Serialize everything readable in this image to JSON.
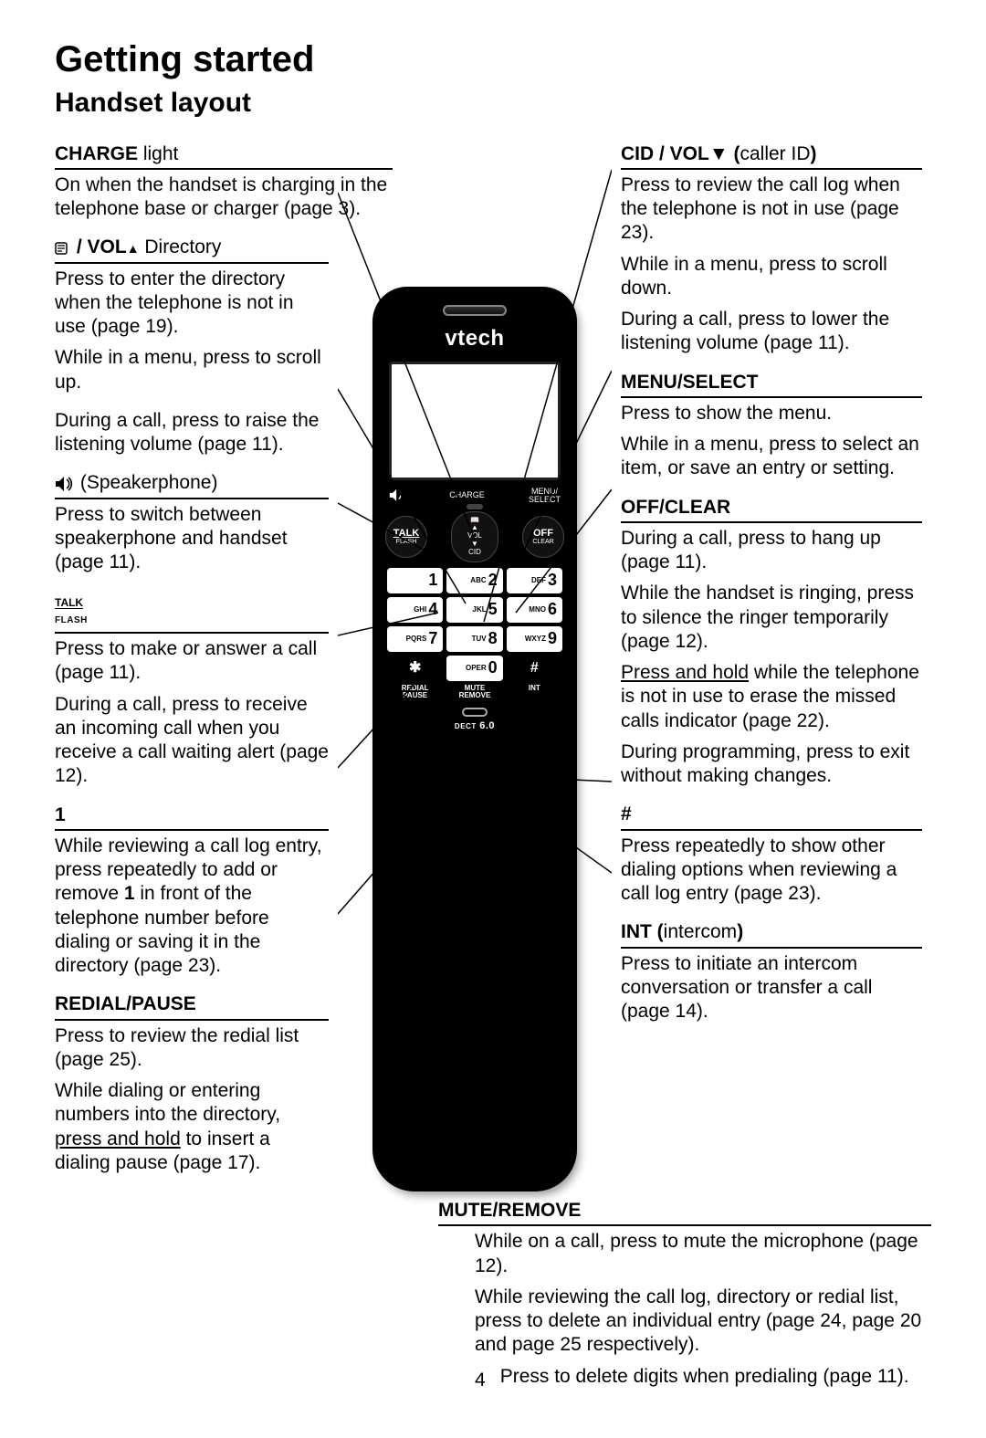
{
  "title": "Getting started",
  "subtitle": "Handset layout",
  "pageNumber": "4",
  "phone": {
    "brand": "vtech",
    "chargeLabel": "CHARGE",
    "menuSelectLabel": "MENU/\nSELECT",
    "talk": "TALK",
    "flash": "FLASH",
    "off": "OFF",
    "clear": "CLEAR",
    "navTop": "VOL",
    "navBottom": "CID",
    "keypad": [
      {
        "num": "1",
        "ltr": ""
      },
      {
        "num": "2",
        "ltr": "ABC"
      },
      {
        "num": "3",
        "ltr": "DEF"
      },
      {
        "num": "4",
        "ltr": "GHI"
      },
      {
        "num": "5",
        "ltr": "JKL"
      },
      {
        "num": "6",
        "ltr": "MNO"
      },
      {
        "num": "7",
        "ltr": "PQRS"
      },
      {
        "num": "8",
        "ltr": "TUV"
      },
      {
        "num": "9",
        "ltr": "WXYZ"
      },
      {
        "num": "✱",
        "ltr": ""
      },
      {
        "num": "0",
        "ltr": "OPER"
      },
      {
        "num": "#",
        "ltr": ""
      }
    ],
    "fnRow": [
      "REDIAL\nPAUSE",
      "MUTE\nREMOVE",
      "INT"
    ],
    "dect": "DECT 6.0"
  },
  "left": {
    "charge": {
      "hd_b": "CHARGE",
      "hd_r": " light",
      "p1": "On when the handset is charging in the telephone base or charger (page 3)."
    },
    "dir": {
      "hd_b": "/ VOL",
      "hd_r": "   Directory",
      "p1": "Press to enter the directory when the telephone is not in use (page 19).",
      "p2": "While in a menu, press to scroll up.",
      "p3": "During a call, press to raise the listening volume (page 11)."
    },
    "spk": {
      "hd_r": " (Speakerphone)",
      "p1": "Press to switch between speakerphone and handset (page 11)."
    },
    "talk": {
      "p1": "Press to make or answer a call (page 11).",
      "p2": "During a call, press to receive an incoming call when you receive a call waiting alert (page 12)."
    },
    "one": {
      "hd_b": "1",
      "p1_a": "While reviewing a call log entry, press repeatedly to add or remove ",
      "p1_b": "1",
      "p1_c": " in front of the telephone number before dialing or saving it in the directory (page 23)."
    },
    "redial": {
      "hd_b": "REDIAL/PAUSE",
      "p1": "Press to review the redial list (page 25).",
      "p2_a": "While dialing or entering numbers into the directory, ",
      "p2_b": "press and hold",
      "p2_c": " to insert a dialing pause (page 17)."
    }
  },
  "right": {
    "cid": {
      "hd_b": "CID / VOL",
      "hd_r": "caller ID",
      "p1": "Press to review the call log when the telephone is not in use (page 23).",
      "p2": "While in a menu, press to scroll down.",
      "p3": "During a call, press to lower the listening volume (page 11)."
    },
    "menu": {
      "hd_b": "MENU/SELECT",
      "p1": "Press to show the menu.",
      "p2": "While in a menu, press to select an item, or save an entry or setting."
    },
    "off": {
      "hd_b": "OFF/CLEAR",
      "p1": "During a call, press to hang up (page 11).",
      "p2": "While the handset is ringing, press to silence the ringer temporarily (page 12).",
      "p3_a": "Press and hold",
      "p3_b": " while the telephone is not in use to erase the missed calls indicator (page 22).",
      "p4": "During programming, press to exit without making changes."
    },
    "hash": {
      "hd_b": "#",
      "p1": "Press repeatedly to show other dialing options when reviewing a call log entry (page 23)."
    },
    "int": {
      "hd_b": "INT (",
      "hd_r": "intercom",
      "hd_c": ")",
      "p1": "Press to initiate an intercom conversation or transfer a call (page 14)."
    }
  },
  "mute": {
    "hd_b": "MUTE/REMOVE",
    "p1": "While on a call, press to mute the microphone (page 12).",
    "p2": "While reviewing the call log, directory or redial list, press to delete an individual entry (page 24, page 20 and page 25 respectively).",
    "p3": "Press to delete digits when predialing (page 11)."
  }
}
